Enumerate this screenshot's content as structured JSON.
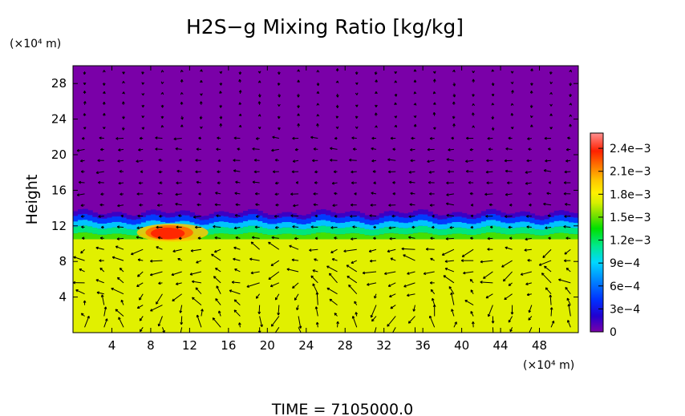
{
  "chart_data": {
    "type": "heatmap",
    "title": "H2S−g Mixing Ratio [kg/kg]",
    "ylabel": "Height",
    "y_unit": "(×10⁴ m)",
    "x_unit": "(×10⁴ m)",
    "footer": "TIME  =  7105000.0",
    "xlim": [
      0,
      52
    ],
    "ylim": [
      0,
      30
    ],
    "x_ticks": [
      "4",
      "8",
      "12",
      "16",
      "20",
      "24",
      "28",
      "32",
      "36",
      "40",
      "44",
      "48"
    ],
    "y_ticks": [
      "4",
      "8",
      "12",
      "16",
      "20",
      "24",
      "28"
    ],
    "colorbar": {
      "min": 0,
      "max": 0.0026,
      "ticks": [
        "0",
        "3e−4",
        "6e−4",
        "9e−4",
        "1.2e−3",
        "1.5e−3",
        "1.8e−3",
        "2.1e−3",
        "2.4e−3"
      ],
      "tick_values": [
        0,
        0.0003,
        0.0006,
        0.0009,
        0.0012,
        0.0015,
        0.0018,
        0.0021,
        0.0024
      ]
    },
    "fields": {
      "lower_layer": {
        "height_range": [
          0,
          10.5
        ],
        "value": 0.00172
      },
      "upper_layer": {
        "height_range": [
          13,
          30
        ],
        "value": 0.0
      },
      "red_core": {
        "x_range": [
          8,
          11.5
        ],
        "height_range": [
          10.5,
          12
        ],
        "value": 0.00235
      }
    },
    "overlay": "wind vectors"
  }
}
